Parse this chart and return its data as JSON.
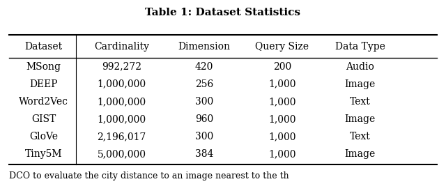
{
  "title": "Table 1: Dataset Statistics",
  "columns": [
    "Dataset",
    "Cardinality",
    "Dimension",
    "Query Size",
    "Data Type"
  ],
  "rows": [
    [
      "MSong",
      "992,272",
      "420",
      "200",
      "Audio"
    ],
    [
      "DEEP",
      "1,000,000",
      "256",
      "1,000",
      "Image"
    ],
    [
      "Word2Vec",
      "1,000,000",
      "300",
      "1,000",
      "Text"
    ],
    [
      "GIST",
      "1,000,000",
      "960",
      "1,000",
      "Image"
    ],
    [
      "GloVe",
      "2,196,017",
      "300",
      "1,000",
      "Text"
    ],
    [
      "Tiny5M",
      "5,000,000",
      "384",
      "1,000",
      "Image"
    ]
  ],
  "background_color": "#ffffff",
  "title_fontsize": 11,
  "header_fontsize": 10,
  "cell_fontsize": 10,
  "footer_text": "DCO to evaluate the city distance to an image nearest to the th",
  "footer_fontsize": 9
}
